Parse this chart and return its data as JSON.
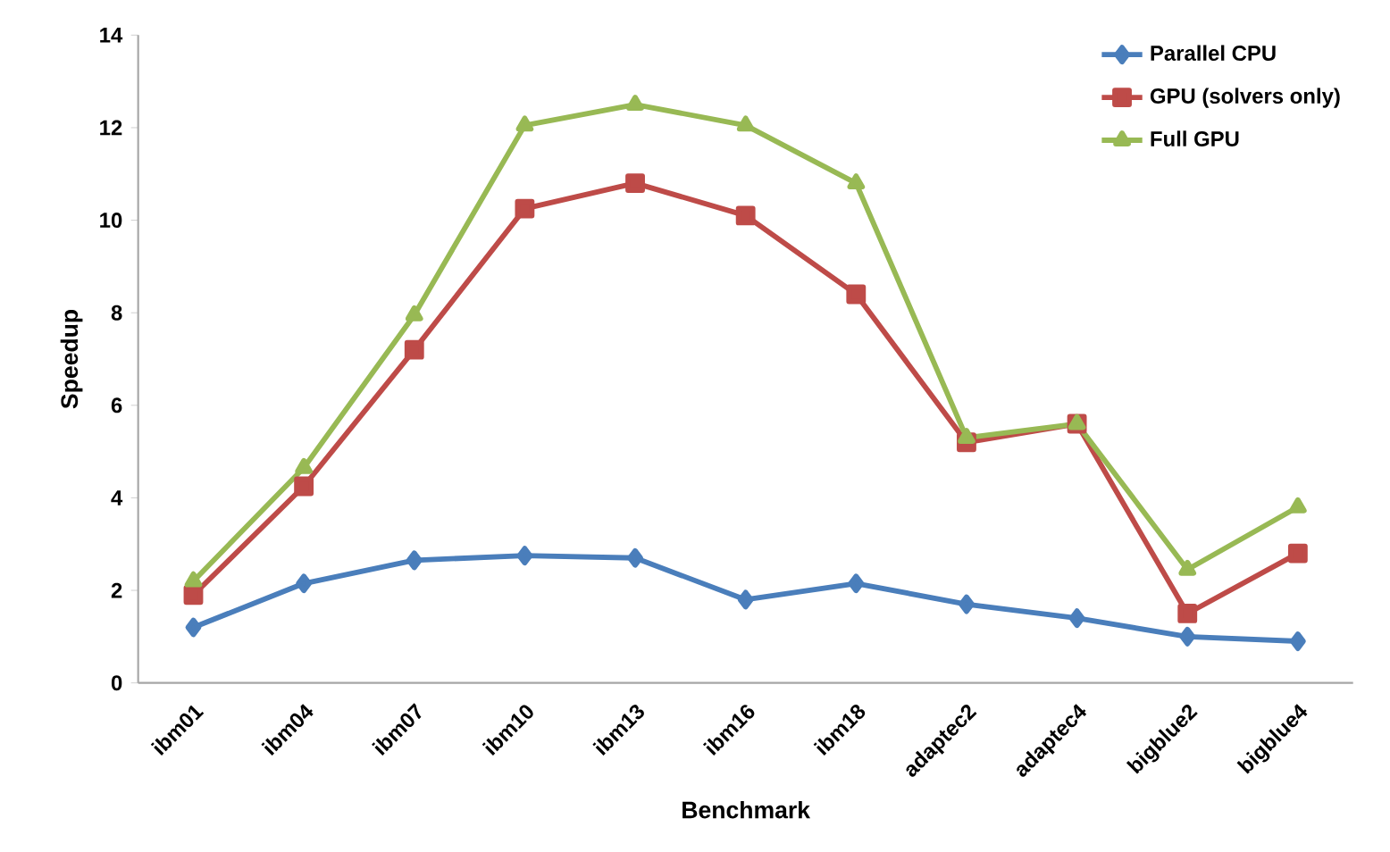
{
  "chart_data": {
    "type": "line",
    "xlabel": "Benchmark",
    "ylabel": "Speedup",
    "categories": [
      "ibm01",
      "ibm04",
      "ibm07",
      "ibm10",
      "ibm13",
      "ibm16",
      "ibm18",
      "adaptec2",
      "adaptec4",
      "bigblue2",
      "bigblue4"
    ],
    "series": [
      {
        "name": "Parallel CPU",
        "color": "#4a7ebb",
        "marker": "diamond",
        "values": [
          1.2,
          2.15,
          2.65,
          2.75,
          2.7,
          1.8,
          2.15,
          1.7,
          1.4,
          1.0,
          0.9
        ]
      },
      {
        "name": "GPU (solvers only)",
        "color": "#be4b48",
        "marker": "square",
        "values": [
          1.9,
          4.25,
          7.2,
          10.25,
          10.8,
          10.1,
          8.4,
          5.2,
          5.6,
          1.5,
          2.8
        ]
      },
      {
        "name": "Full GPU",
        "color": "#98b954",
        "marker": "triangle",
        "values": [
          2.2,
          4.65,
          7.95,
          12.05,
          12.5,
          12.05,
          10.8,
          5.3,
          5.6,
          2.45,
          3.8
        ]
      }
    ],
    "ylim": [
      0,
      14
    ],
    "yticks": [
      0,
      2,
      4,
      6,
      8,
      10,
      12,
      14
    ],
    "grid": false,
    "legend": "top right",
    "line_style": "solid"
  }
}
